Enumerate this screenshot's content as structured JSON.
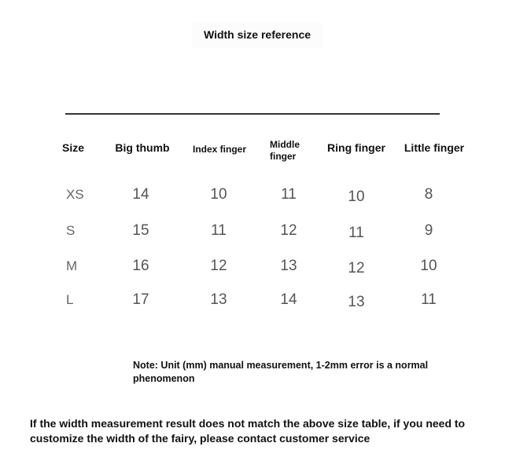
{
  "title": "Width size reference",
  "table": {
    "headers": [
      "Size",
      "Big thumb",
      "Index finger",
      "Middle finger",
      "Ring finger",
      "Little finger"
    ],
    "rows": [
      [
        "XS",
        "14",
        "10",
        "11",
        "10",
        "8"
      ],
      [
        "S",
        "15",
        "11",
        "12",
        "11",
        "9"
      ],
      [
        "M",
        "16",
        "12",
        "13",
        "12",
        "10"
      ],
      [
        "L",
        "17",
        "13",
        "14",
        "13",
        "11"
      ]
    ]
  },
  "note": "Note: Unit (mm) manual measurement, 1-2mm error is a normal phenomenon",
  "footer": "If the width measurement result does not match the above size table, if you need to customize the width of the fairy, please contact customer service"
}
